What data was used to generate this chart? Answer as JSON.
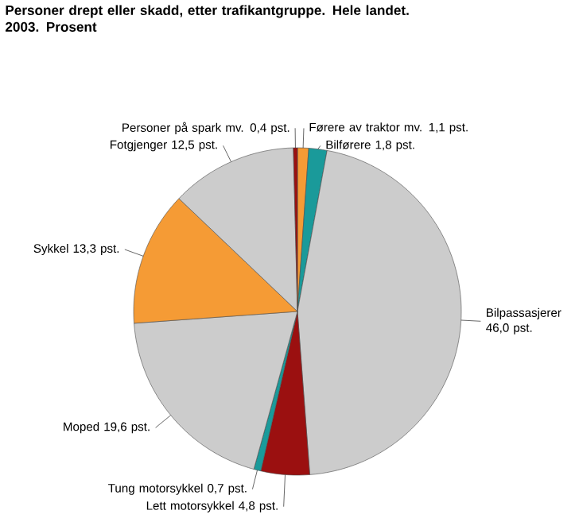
{
  "chart_data": {
    "type": "pie",
    "title": "Personer drept eller skadd, etter trafikantgruppe. Hele landet. 2003. Prosent",
    "categories": [
      "Førere av traktor mv.",
      "Bilførere",
      "Bilpassasjerer",
      "Lett motorsykkel",
      "Tung motorsykkel",
      "Moped",
      "Sykkel",
      "Fotgjenger",
      "Personer på spark mv."
    ],
    "values": [
      1.1,
      1.8,
      46.0,
      4.8,
      0.7,
      19.6,
      13.3,
      12.5,
      0.4
    ],
    "value_labels": [
      "1,1 pst.",
      "1,8 pst.",
      "46,0 pst.",
      "4,8 pst.",
      "0,7 pst.",
      "19,6 pst.",
      "13,3 pst.",
      "12,5 pst.",
      "0,4 pst."
    ],
    "colors": [
      "#f59b35",
      "#1a9a9a",
      "#cccccc",
      "#9b1010",
      "#1a9a9a",
      "#cccccc",
      "#f59b35",
      "#cccccc",
      "#9b1010"
    ]
  }
}
